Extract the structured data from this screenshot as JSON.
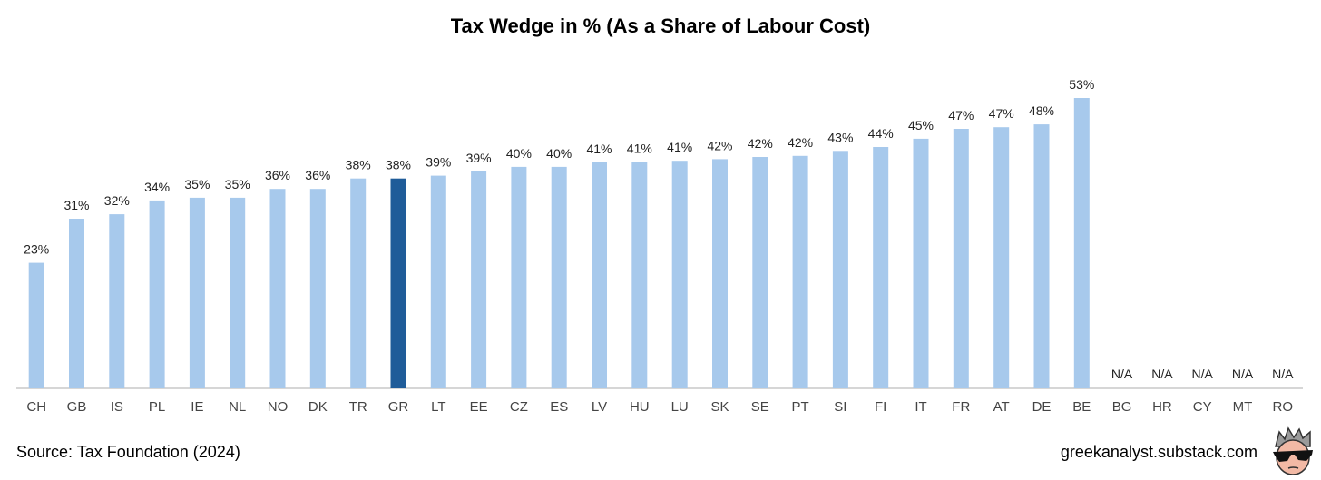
{
  "chart_data": {
    "type": "bar",
    "title": "Tax Wedge in % (As a Share of Labour Cost)",
    "categories": [
      "CH",
      "GB",
      "IS",
      "PL",
      "IE",
      "NL",
      "NO",
      "DK",
      "TR",
      "GR",
      "LT",
      "EE",
      "CZ",
      "ES",
      "LV",
      "HU",
      "LU",
      "SK",
      "SE",
      "PT",
      "SI",
      "FI",
      "IT",
      "FR",
      "AT",
      "DE",
      "BE",
      "BG",
      "HR",
      "CY",
      "MT",
      "RO"
    ],
    "values": [
      22.8,
      30.8,
      31.6,
      34.1,
      34.6,
      34.6,
      36.2,
      36.2,
      38.1,
      38.1,
      38.6,
      39.4,
      40.2,
      40.2,
      41.0,
      41.1,
      41.3,
      41.6,
      42.0,
      42.2,
      43.1,
      43.8,
      45.3,
      47.1,
      47.4,
      47.9,
      52.7,
      null,
      null,
      null,
      null,
      null
    ],
    "labels": [
      "23%",
      "31%",
      "32%",
      "34%",
      "35%",
      "35%",
      "36%",
      "36%",
      "38%",
      "38%",
      "39%",
      "39%",
      "40%",
      "40%",
      "41%",
      "41%",
      "41%",
      "42%",
      "42%",
      "42%",
      "43%",
      "44%",
      "45%",
      "47%",
      "47%",
      "48%",
      "53%",
      "N/A",
      "N/A",
      "N/A",
      "N/A",
      "N/A"
    ],
    "highlight": "GR",
    "colors": {
      "bar": "#a7c9ec",
      "highlight": "#1f5c99",
      "axis": "#c8c8c8",
      "label": "#222222",
      "tick": "#444444"
    },
    "ylim": [
      0,
      56
    ],
    "grid": false,
    "xlabel": "",
    "ylabel": ""
  },
  "footer": {
    "source": "Source: Tax Foundation (2024)",
    "site": "greekanalyst.substack.com"
  }
}
